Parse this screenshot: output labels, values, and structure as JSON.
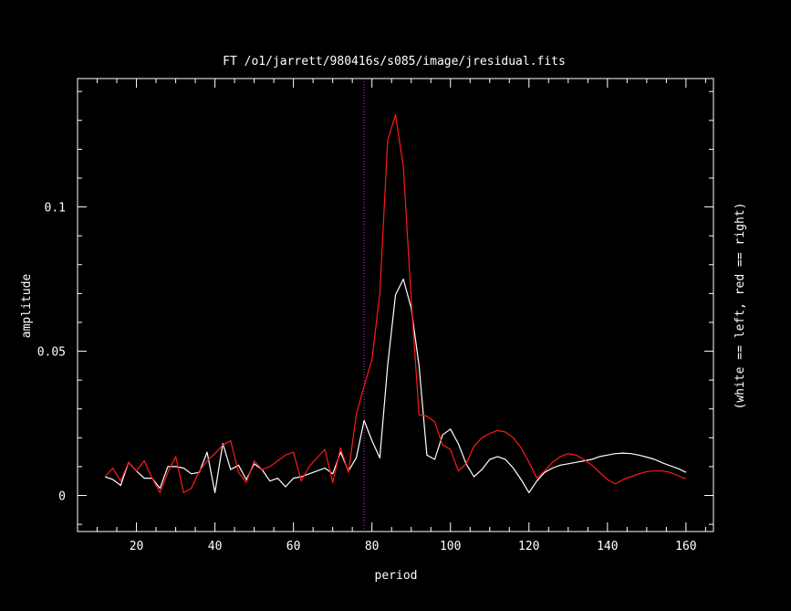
{
  "chart_data": {
    "type": "line",
    "title": "FT  /o1/jarrett/980416s/s085/image/jresidual.fits",
    "xlabel": "period",
    "ylabel": "amplitude",
    "right_label": "(white == left, red == right)",
    "xlim": [
      5,
      167
    ],
    "ylim": [
      -0.0125,
      0.1445
    ],
    "x_ticks": [
      20,
      40,
      60,
      80,
      100,
      120,
      140,
      160
    ],
    "y_ticks": [
      0,
      0.05,
      0.1
    ],
    "y_tick_labels": [
      "0",
      "0.05",
      "0.1"
    ],
    "vline": {
      "x": 78,
      "color": "#cc33cc"
    },
    "grid": false,
    "series": [
      {
        "color": "#ffffff",
        "points": [
          [
            12,
            0.0065
          ],
          [
            14,
            0.0055
          ],
          [
            16,
            0.0035
          ],
          [
            18,
            0.0115
          ],
          [
            20,
            0.0085
          ],
          [
            22,
            0.006
          ],
          [
            24,
            0.006
          ],
          [
            26,
            0.0025
          ],
          [
            28,
            0.01
          ],
          [
            30,
            0.01
          ],
          [
            32,
            0.0095
          ],
          [
            34,
            0.0075
          ],
          [
            36,
            0.008
          ],
          [
            38,
            0.015
          ],
          [
            40,
            0.001
          ],
          [
            42,
            0.018
          ],
          [
            44,
            0.009
          ],
          [
            46,
            0.0105
          ],
          [
            48,
            0.0055
          ],
          [
            50,
            0.011
          ],
          [
            52,
            0.009
          ],
          [
            54,
            0.005
          ],
          [
            56,
            0.006
          ],
          [
            58,
            0.003
          ],
          [
            60,
            0.006
          ],
          [
            62,
            0.0065
          ],
          [
            64,
            0.0075
          ],
          [
            66,
            0.0085
          ],
          [
            68,
            0.0095
          ],
          [
            70,
            0.0075
          ],
          [
            72,
            0.015
          ],
          [
            74,
            0.0085
          ],
          [
            76,
            0.013
          ],
          [
            78,
            0.026
          ],
          [
            80,
            0.019
          ],
          [
            82,
            0.013
          ],
          [
            84,
            0.045
          ],
          [
            86,
            0.0695
          ],
          [
            88,
            0.075
          ],
          [
            90,
            0.065
          ],
          [
            92,
            0.045
          ],
          [
            94,
            0.014
          ],
          [
            96,
            0.0125
          ],
          [
            98,
            0.021
          ],
          [
            100,
            0.023
          ],
          [
            102,
            0.018
          ],
          [
            104,
            0.011
          ],
          [
            106,
            0.0065
          ],
          [
            108,
            0.009
          ],
          [
            110,
            0.0125
          ],
          [
            112,
            0.0135
          ],
          [
            114,
            0.0125
          ],
          [
            116,
            0.0095
          ],
          [
            118,
            0.0055
          ],
          [
            120,
            0.001
          ],
          [
            122,
            0.005
          ],
          [
            124,
            0.008
          ],
          [
            126,
            0.0095
          ],
          [
            128,
            0.0105
          ],
          [
            130,
            0.011
          ],
          [
            132,
            0.0115
          ],
          [
            134,
            0.012
          ],
          [
            136,
            0.0125
          ],
          [
            138,
            0.0135
          ],
          [
            140,
            0.014
          ],
          [
            142,
            0.0145
          ],
          [
            144,
            0.0147
          ],
          [
            146,
            0.0145
          ],
          [
            148,
            0.014
          ],
          [
            150,
            0.0133
          ],
          [
            152,
            0.0125
          ],
          [
            154,
            0.0113
          ],
          [
            156,
            0.0103
          ],
          [
            158,
            0.0093
          ],
          [
            160,
            0.008
          ]
        ]
      },
      {
        "color": "#ff1a1a",
        "points": [
          [
            12,
            0.0065
          ],
          [
            14,
            0.0095
          ],
          [
            16,
            0.005
          ],
          [
            18,
            0.0115
          ],
          [
            20,
            0.0085
          ],
          [
            22,
            0.012
          ],
          [
            24,
            0.006
          ],
          [
            26,
            0.001
          ],
          [
            28,
            0.008
          ],
          [
            30,
            0.0135
          ],
          [
            32,
            0.001
          ],
          [
            34,
            0.0025
          ],
          [
            36,
            0.0085
          ],
          [
            38,
            0.012
          ],
          [
            40,
            0.0145
          ],
          [
            42,
            0.0175
          ],
          [
            44,
            0.019
          ],
          [
            46,
            0.008
          ],
          [
            48,
            0.0045
          ],
          [
            50,
            0.012
          ],
          [
            52,
            0.009
          ],
          [
            54,
            0.01
          ],
          [
            56,
            0.012
          ],
          [
            58,
            0.014
          ],
          [
            60,
            0.015
          ],
          [
            62,
            0.005
          ],
          [
            64,
            0.01
          ],
          [
            66,
            0.013
          ],
          [
            68,
            0.016
          ],
          [
            70,
            0.0045
          ],
          [
            72,
            0.0165
          ],
          [
            74,
            0.008
          ],
          [
            76,
            0.028
          ],
          [
            78,
            0.038
          ],
          [
            80,
            0.047
          ],
          [
            82,
            0.07
          ],
          [
            84,
            0.123
          ],
          [
            86,
            0.132
          ],
          [
            88,
            0.114
          ],
          [
            90,
            0.068
          ],
          [
            92,
            0.028
          ],
          [
            94,
            0.0275
          ],
          [
            96,
            0.0255
          ],
          [
            98,
            0.0175
          ],
          [
            100,
            0.016
          ],
          [
            102,
            0.0085
          ],
          [
            104,
            0.011
          ],
          [
            106,
            0.017
          ],
          [
            108,
            0.02
          ],
          [
            110,
            0.0215
          ],
          [
            112,
            0.0225
          ],
          [
            114,
            0.022
          ],
          [
            116,
            0.02
          ],
          [
            118,
            0.0165
          ],
          [
            120,
            0.0115
          ],
          [
            122,
            0.006
          ],
          [
            124,
            0.0085
          ],
          [
            126,
            0.0115
          ],
          [
            128,
            0.0135
          ],
          [
            130,
            0.0145
          ],
          [
            132,
            0.014
          ],
          [
            134,
            0.0125
          ],
          [
            136,
            0.0105
          ],
          [
            138,
            0.008
          ],
          [
            140,
            0.0055
          ],
          [
            142,
            0.004
          ],
          [
            144,
            0.0055
          ],
          [
            146,
            0.0065
          ],
          [
            148,
            0.0075
          ],
          [
            150,
            0.0083
          ],
          [
            152,
            0.0085
          ],
          [
            154,
            0.0085
          ],
          [
            156,
            0.008
          ],
          [
            158,
            0.0068
          ],
          [
            160,
            0.0058
          ]
        ]
      }
    ]
  }
}
